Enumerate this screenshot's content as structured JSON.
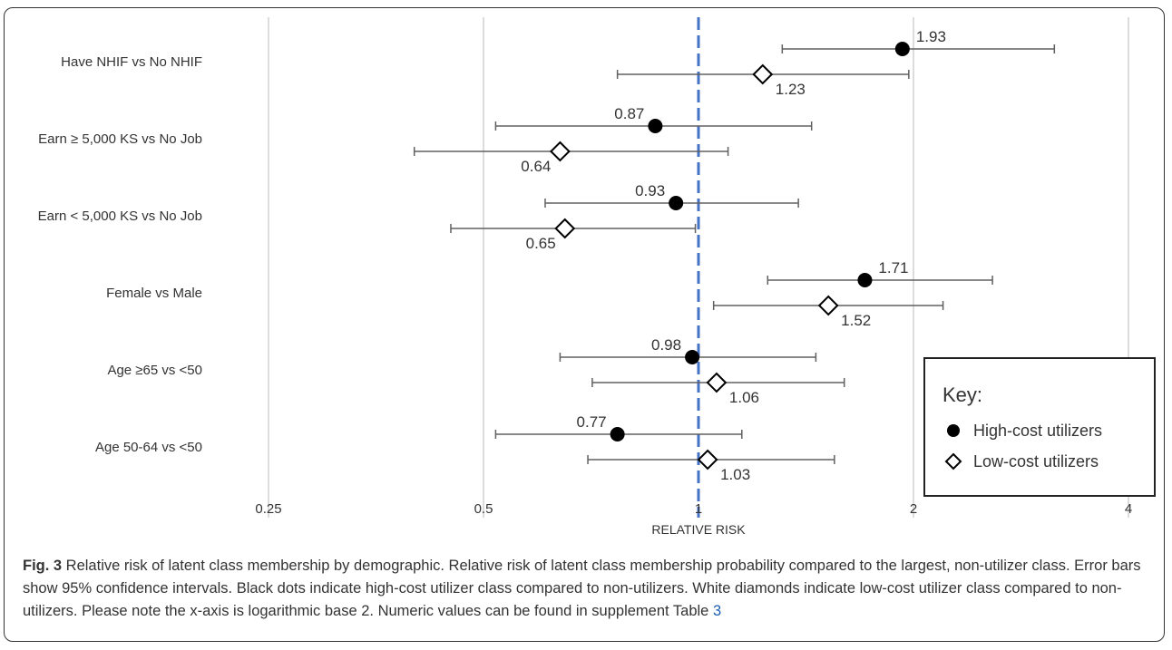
{
  "chart_data": {
    "type": "scatter",
    "subtype": "forest-plot",
    "x_scale": "log2",
    "xlabel": "RELATIVE RISK",
    "x_ticks": [
      0.25,
      0.5,
      1,
      2,
      4
    ],
    "x_tick_labels": [
      "0.25",
      "0.5",
      "1",
      "2",
      "4"
    ],
    "xlim": [
      0.25,
      4
    ],
    "reference_line": 1,
    "categories": [
      "Have NHIF vs No NHIF",
      "Earn ≥ 5,000 KS vs No Job",
      "Earn < 5,000 KS vs No Job",
      "Female vs Male",
      "Age ≥65 vs <50",
      "Age 50-64 vs <50"
    ],
    "series": [
      {
        "name": "High-cost utilizers",
        "marker": "filled-circle",
        "values": [
          1.93,
          0.87,
          0.93,
          1.71,
          0.98,
          0.77
        ],
        "labels": [
          "1.93",
          "0.87",
          "0.93",
          "1.71",
          "0.98",
          "0.77"
        ],
        "ci_low": [
          1.31,
          0.52,
          0.61,
          1.25,
          0.64,
          0.52
        ],
        "ci_high": [
          3.15,
          1.44,
          1.38,
          2.58,
          1.46,
          1.15
        ]
      },
      {
        "name": "Low-cost utilizers",
        "marker": "open-diamond",
        "values": [
          1.23,
          0.64,
          0.65,
          1.52,
          1.06,
          1.03
        ],
        "labels": [
          "1.23",
          "0.64",
          "0.65",
          "1.52",
          "1.06",
          "1.03"
        ],
        "ci_low": [
          0.77,
          0.4,
          0.45,
          1.05,
          0.71,
          0.7
        ],
        "ci_high": [
          1.97,
          1.1,
          0.99,
          2.2,
          1.6,
          1.55
        ]
      }
    ],
    "legend": {
      "title": "Key:",
      "placement": "bottom-right",
      "items": [
        "High-cost utilizers",
        "Low-cost utilizers"
      ]
    },
    "grid": "vertical"
  },
  "caption": {
    "label": "Fig. 3",
    "text": " Relative risk of latent class membership by demographic. Relative risk of latent class membership probability compared to the largest, non-utilizer class. Error bars show 95% confidence intervals. Black dots indicate high-cost utilizer class compared to non-utilizers. White diamonds indicate low-cost utilizer class compared to non-utilizers. Please note the x-axis is logarithmic base 2. Numeric values can be found in supplement Table ",
    "table_ref": "3"
  },
  "colors": {
    "reference_line": "#4472c4",
    "gridline": "#d0d0d0",
    "error_bar": "#606060",
    "marker": "#000000",
    "text": "#333333",
    "link": "#1a5fb4"
  }
}
